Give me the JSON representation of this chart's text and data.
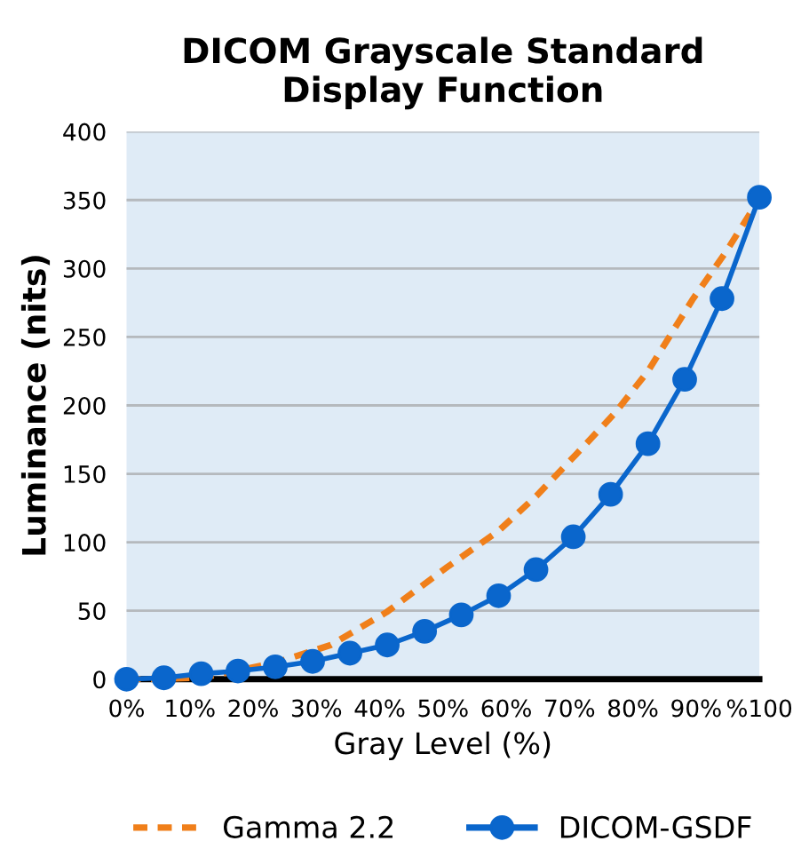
{
  "chart_data": {
    "type": "line",
    "title": "DICOM Grayscale Standard\nDisplay Function",
    "xlabel": "Gray Level (%)",
    "ylabel": "Luminance (nits)",
    "xlim": [
      0,
      100
    ],
    "xticks": [
      {
        "value": 0,
        "label": "0%"
      },
      {
        "value": 10,
        "label": "10%"
      },
      {
        "value": 20,
        "label": "20%"
      },
      {
        "value": 30,
        "label": "30%"
      },
      {
        "value": 40,
        "label": "40%"
      },
      {
        "value": 50,
        "label": "50%"
      },
      {
        "value": 60,
        "label": "60%"
      },
      {
        "value": 70,
        "label": "70%"
      },
      {
        "value": 80,
        "label": "80%"
      },
      {
        "value": 90,
        "label": "90%"
      },
      {
        "value": 100,
        "label": "%100"
      }
    ],
    "ylim": [
      0,
      400
    ],
    "yticks": [
      0,
      50,
      100,
      150,
      200,
      250,
      300,
      350,
      400
    ],
    "grid": "y",
    "legend": "bottom",
    "series": [
      {
        "name": "Gamma 2.2",
        "color": "#f07f1a",
        "line_style": "dashed",
        "marker": "none",
        "x": [
          0,
          11.9,
          23.5,
          32.3,
          41.1,
          50.7,
          58.7,
          64.8,
          71,
          77.1,
          82.4,
          89.4,
          94.7,
          100
        ],
        "values": [
          0,
          1,
          12,
          25,
          49,
          82,
          108,
          134,
          164,
          194,
          225,
          277,
          312,
          351
        ]
      },
      {
        "name": "DICOM-GSDF",
        "color": "#0a66cc",
        "line_style": "solid",
        "marker": "circle",
        "x": [
          0,
          5.9,
          11.8,
          17.6,
          23.5,
          29.4,
          35.3,
          41.2,
          47.1,
          52.9,
          58.8,
          64.7,
          70.6,
          76.5,
          82.4,
          88.2,
          94.1,
          100
        ],
        "values": [
          0,
          1,
          4,
          6,
          9,
          13,
          19,
          25,
          35,
          47,
          61,
          80,
          104,
          135,
          172,
          219,
          278,
          352
        ]
      }
    ]
  }
}
